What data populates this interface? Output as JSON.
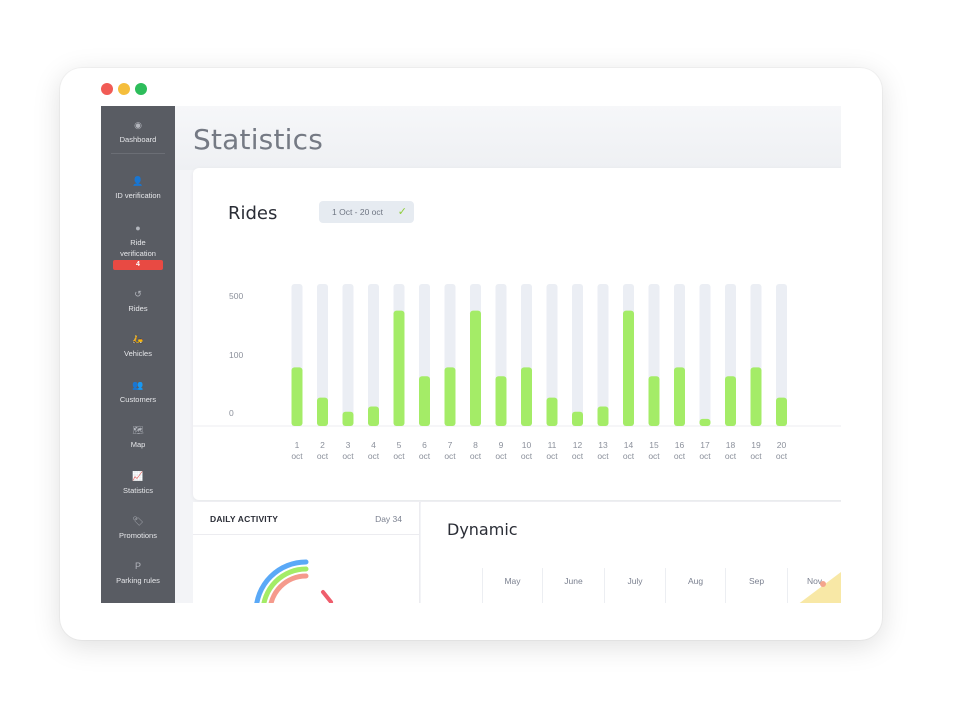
{
  "window": {
    "dot_colors": [
      "#f15b55",
      "#f5be3c",
      "#2dbd5b"
    ]
  },
  "sidebar": {
    "items": [
      {
        "label": "Dashboard",
        "icon": "dashboard-icon",
        "glyph": "◉"
      },
      {
        "label": "ID verification",
        "icon": "user-check-icon",
        "glyph": "👤"
      },
      {
        "label": "Ride verification",
        "icon": "check-circle-icon",
        "glyph": "●",
        "badge": "4"
      },
      {
        "label": "Rides",
        "icon": "history-icon",
        "glyph": "↺"
      },
      {
        "label": "Vehicles",
        "icon": "motorcycle-icon",
        "glyph": "🛵"
      },
      {
        "label": "Customers",
        "icon": "users-icon",
        "glyph": "👥"
      },
      {
        "label": "Map",
        "icon": "map-icon",
        "glyph": "🗺"
      },
      {
        "label": "Statistics",
        "icon": "chart-icon",
        "glyph": "📈"
      },
      {
        "label": "Promotions",
        "icon": "tag-icon",
        "glyph": "🏷"
      },
      {
        "label": "Parking rules",
        "icon": "parking-icon",
        "glyph": "P"
      }
    ]
  },
  "page": {
    "title": "Statistics"
  },
  "rides": {
    "title": "Rides",
    "range": "1 Oct - 20 oct",
    "accent": "#a4ec67",
    "track": "#ebeef4",
    "chart_data": {
      "type": "bar",
      "categories": [
        "1 oct",
        "2 oct",
        "3 oct",
        "4 oct",
        "5 oct",
        "6 oct",
        "7 oct",
        "8 oct",
        "9 oct",
        "10 oct",
        "11 oct",
        "12 oct",
        "13 oct",
        "14 oct",
        "15 oct",
        "16 oct",
        "17 oct",
        "18 oct",
        "19 oct",
        "20 oct"
      ],
      "values": [
        165,
        80,
        40,
        55,
        325,
        140,
        165,
        325,
        140,
        165,
        80,
        40,
        55,
        325,
        140,
        165,
        20,
        140,
        165,
        80
      ],
      "y_ticks": [
        "0",
        "100",
        "500"
      ],
      "grid": false
    }
  },
  "daily_activity": {
    "title": "DAILY ACTIVITY",
    "day": "Day 34"
  },
  "dynamic": {
    "title": "Dynamic",
    "months": [
      "May",
      "June",
      "July",
      "Aug",
      "Sep",
      "Nov"
    ]
  }
}
